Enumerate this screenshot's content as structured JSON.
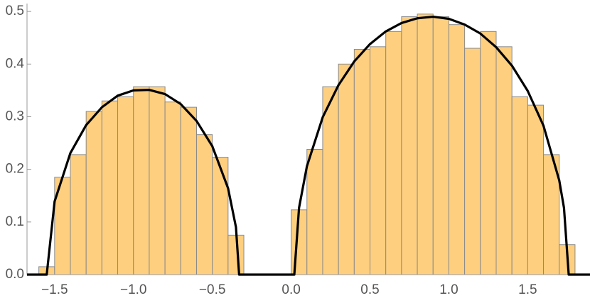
{
  "chart_data": {
    "type": "histogram",
    "bins": [
      -1.6,
      -1.5,
      -1.4,
      -1.3,
      -1.2,
      -1.1,
      -1.0,
      -0.9,
      -0.8,
      -0.7,
      -0.6,
      -0.5,
      -0.4,
      -0.3,
      -0.2,
      -0.1,
      0.0,
      0.1,
      0.2,
      0.3,
      0.4,
      0.5,
      0.6,
      0.7,
      0.8,
      0.9,
      1.0,
      1.1,
      1.2,
      1.3,
      1.4,
      1.5,
      1.6,
      1.7,
      1.8
    ],
    "counts": [
      0.015,
      0.185,
      0.228,
      0.31,
      0.33,
      0.338,
      0.357,
      0.357,
      0.328,
      0.318,
      0.266,
      0.223,
      0.075,
      0,
      0,
      0,
      0.123,
      0.238,
      0.357,
      0.4,
      0.428,
      0.433,
      0.462,
      0.49,
      0.495,
      0.49,
      0.475,
      0.43,
      0.462,
      0.433,
      0.338,
      0.322,
      0.228,
      0.057
    ],
    "color": "#fecf7f",
    "edge_color": "#8a8a8a",
    "curve": {
      "color": "#000000",
      "x": [
        -1.675,
        -1.55,
        -1.5,
        -1.4,
        -1.3,
        -1.2,
        -1.1,
        -1.0,
        -0.9,
        -0.8,
        -0.7,
        -0.6,
        -0.5,
        -0.4,
        -0.35,
        -0.33,
        0.02,
        0.05,
        0.1,
        0.2,
        0.3,
        0.4,
        0.5,
        0.6,
        0.7,
        0.8,
        0.9,
        1.0,
        1.1,
        1.2,
        1.3,
        1.4,
        1.5,
        1.6,
        1.7,
        1.73,
        1.76,
        1.895
      ],
      "y": [
        0,
        0,
        0.139,
        0.231,
        0.284,
        0.318,
        0.34,
        0.35,
        0.351,
        0.343,
        0.324,
        0.292,
        0.244,
        0.164,
        0.09,
        0,
        0,
        0.127,
        0.206,
        0.299,
        0.36,
        0.405,
        0.438,
        0.462,
        0.478,
        0.487,
        0.49,
        0.486,
        0.475,
        0.458,
        0.432,
        0.397,
        0.349,
        0.283,
        0.179,
        0.127,
        0,
        0
      ]
    },
    "xlim": [
      -1.675,
      1.895
    ],
    "ylim": [
      0,
      0.515
    ],
    "xticks": [
      {
        "value": -1.5,
        "label": "−1.5"
      },
      {
        "value": -1.0,
        "label": "−1.0"
      },
      {
        "value": -0.5,
        "label": "−0.5"
      },
      {
        "value": 0,
        "label": "0.0"
      },
      0.5,
      {
        "value": 1,
        "label": "1.0"
      },
      1.5
    ],
    "yticks": [
      {
        "value": 0,
        "label": "0.0"
      },
      0.1,
      0.2,
      0.3,
      0.4,
      0.5
    ]
  }
}
